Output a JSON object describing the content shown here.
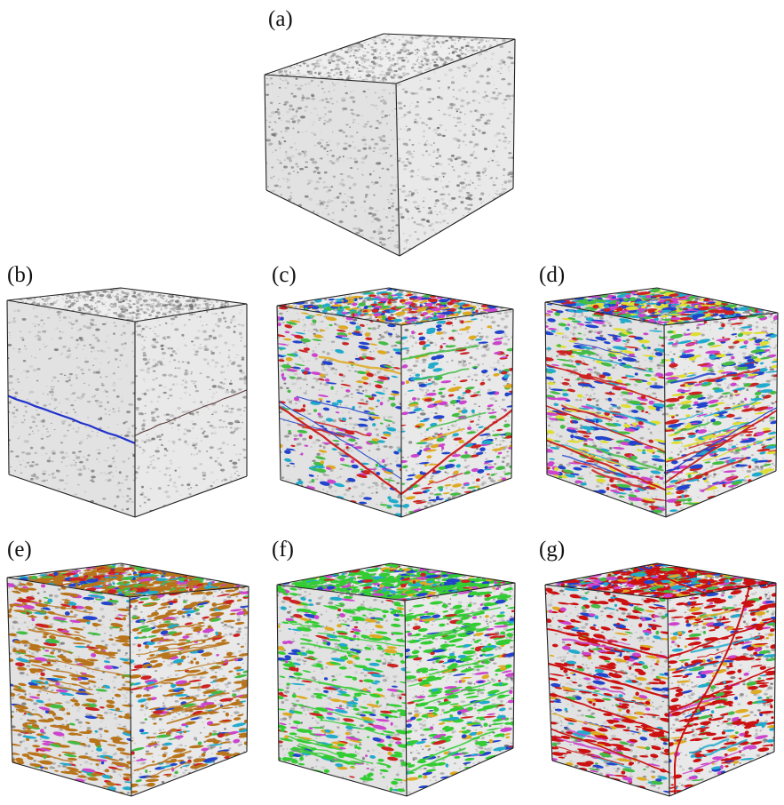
{
  "figure": {
    "panels": [
      {
        "id": "a",
        "label": "(a)",
        "palette": [],
        "phases": 0,
        "red_fractures": 0,
        "blue_fractures": 0
      },
      {
        "id": "b",
        "label": "(b)",
        "palette": [
          "#2233cc"
        ],
        "phases": 1,
        "red_fractures": 0,
        "blue_fractures": 1
      },
      {
        "id": "c",
        "label": "(c)",
        "palette": [
          "#cc2222",
          "#2244cc",
          "#22aacc",
          "#44bb44",
          "#cc44cc",
          "#ddaa22"
        ],
        "phases": 1,
        "red_fractures": 2,
        "blue_fractures": 0
      },
      {
        "id": "d",
        "label": "(d)",
        "palette": [
          "#cc2222",
          "#2244cc",
          "#22aacc",
          "#44bb44",
          "#cc44cc",
          "#dddd33"
        ],
        "phases": 1,
        "red_fractures": 3,
        "blue_fractures": 1
      },
      {
        "id": "e",
        "label": "(e)",
        "palette": [
          "#b8741a",
          "#2244cc",
          "#22aacc",
          "#44bb44",
          "#cc44cc",
          "#cc2222"
        ],
        "phases": 1,
        "red_fractures": 0,
        "blue_fractures": 0
      },
      {
        "id": "f",
        "label": "(f)",
        "palette": [
          "#33cc33",
          "#2244cc",
          "#22aacc",
          "#cc2222",
          "#cc44cc",
          "#ddaa22"
        ],
        "phases": 1,
        "red_fractures": 0,
        "blue_fractures": 0
      },
      {
        "id": "g",
        "label": "(g)",
        "palette": [
          "#cc1111",
          "#2244cc",
          "#22aacc",
          "#44bb44",
          "#cc44cc",
          "#ddaa22"
        ],
        "phases": 1,
        "red_fractures": 6,
        "blue_fractures": 0
      }
    ],
    "colors": {
      "cube_edge": "#222222",
      "rock_base": "#e6e6e6",
      "rock_speckle": "#6a6a6a"
    }
  }
}
